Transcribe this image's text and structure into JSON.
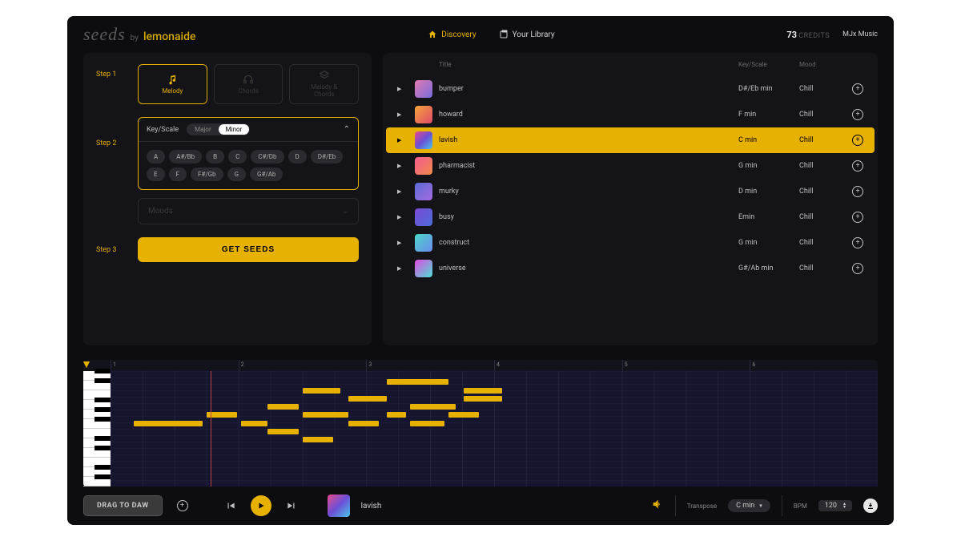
{
  "brand": {
    "seeds": "seeds",
    "by": "by",
    "lemonaide": "lemonaide"
  },
  "nav": {
    "discovery": "Discovery",
    "library": "Your Library"
  },
  "account": {
    "credits_value": "73",
    "credits_label": "CREDITS",
    "user": "MJx Music"
  },
  "steps": {
    "step1": "Step 1",
    "step2": "Step 2",
    "step3": "Step 3",
    "types": {
      "melody": "Melody",
      "chords": "Chords",
      "melody_chords": "Melody &\nChords"
    },
    "key_scale_label": "Key/Scale",
    "scale_toggle": {
      "major": "Major",
      "minor": "Minor"
    },
    "keys": [
      "A",
      "A#/Bb",
      "B",
      "C",
      "C#/Db",
      "D",
      "D#/Eb",
      "E",
      "F",
      "F#/Gb",
      "G",
      "G#/Ab"
    ],
    "moods_label": "Moods",
    "get_seeds": "GET SEEDS"
  },
  "table": {
    "headers": {
      "title": "Title",
      "key": "Key/Scale",
      "mood": "Mood"
    },
    "rows": [
      {
        "title": "bumper",
        "key": "D#/Eb min",
        "mood": "Chill",
        "selected": false,
        "art": "linear-gradient(135deg,#e07ab0,#7a6be0)"
      },
      {
        "title": "howard",
        "key": "F min",
        "mood": "Chill",
        "selected": false,
        "art": "linear-gradient(135deg,#f2a33a,#e04b6b)"
      },
      {
        "title": "lavish",
        "key": "C min",
        "mood": "Chill",
        "selected": true,
        "art": "linear-gradient(135deg,#e94b8a,#6b4fd6,#4bc6e9)"
      },
      {
        "title": "pharmacist",
        "key": "G min",
        "mood": "Chill",
        "selected": false,
        "art": "linear-gradient(135deg,#f45b8f,#f0884a)"
      },
      {
        "title": "murky",
        "key": "D min",
        "mood": "Chill",
        "selected": false,
        "art": "linear-gradient(135deg,#5a6bd6,#a56be0)"
      },
      {
        "title": "busy",
        "key": "Emin",
        "mood": "Chill",
        "selected": false,
        "art": "linear-gradient(135deg,#7a4bd6,#4b6bd6)"
      },
      {
        "title": "construct",
        "key": "G min",
        "mood": "Chill",
        "selected": false,
        "art": "linear-gradient(135deg,#4bd6c6,#6b8bf0)"
      },
      {
        "title": "universe",
        "key": "G#/Ab min",
        "mood": "Chill",
        "selected": false,
        "art": "linear-gradient(135deg,#e04be0,#4be0d6)"
      }
    ]
  },
  "piano": {
    "bars": 6,
    "white_keys": 12,
    "black_key_at": [
      0,
      1,
      3,
      4,
      5,
      7,
      8,
      10,
      11
    ],
    "markers_pct": [
      0,
      66.6
    ],
    "playhead_pct": 13,
    "note_color": "#e7b100",
    "notes": [
      {
        "row": 6,
        "start": 3,
        "len": 9
      },
      {
        "row": 5,
        "start": 12.5,
        "len": 4
      },
      {
        "row": 6,
        "start": 17,
        "len": 3.5
      },
      {
        "row": 4,
        "start": 20.5,
        "len": 4
      },
      {
        "row": 7,
        "start": 20.5,
        "len": 4
      },
      {
        "row": 2,
        "start": 25,
        "len": 5
      },
      {
        "row": 5,
        "start": 25,
        "len": 6
      },
      {
        "row": 8,
        "start": 25,
        "len": 4
      },
      {
        "row": 3,
        "start": 31,
        "len": 5
      },
      {
        "row": 6,
        "start": 31,
        "len": 4
      },
      {
        "row": 1,
        "start": 36,
        "len": 8
      },
      {
        "row": 5,
        "start": 36,
        "len": 2.5
      },
      {
        "row": 4,
        "start": 39,
        "len": 6
      },
      {
        "row": 6,
        "start": 39,
        "len": 4.5
      },
      {
        "row": 2,
        "start": 46,
        "len": 5
      },
      {
        "row": 3,
        "start": 46,
        "len": 5
      },
      {
        "row": 5,
        "start": 44,
        "len": 4
      }
    ]
  },
  "footer": {
    "drag": "DRAG TO DAW",
    "now_playing": "lavish",
    "transpose_label": "Transpose",
    "transpose_value": "C min",
    "bpm_label": "BPM",
    "bpm_value": "120"
  }
}
